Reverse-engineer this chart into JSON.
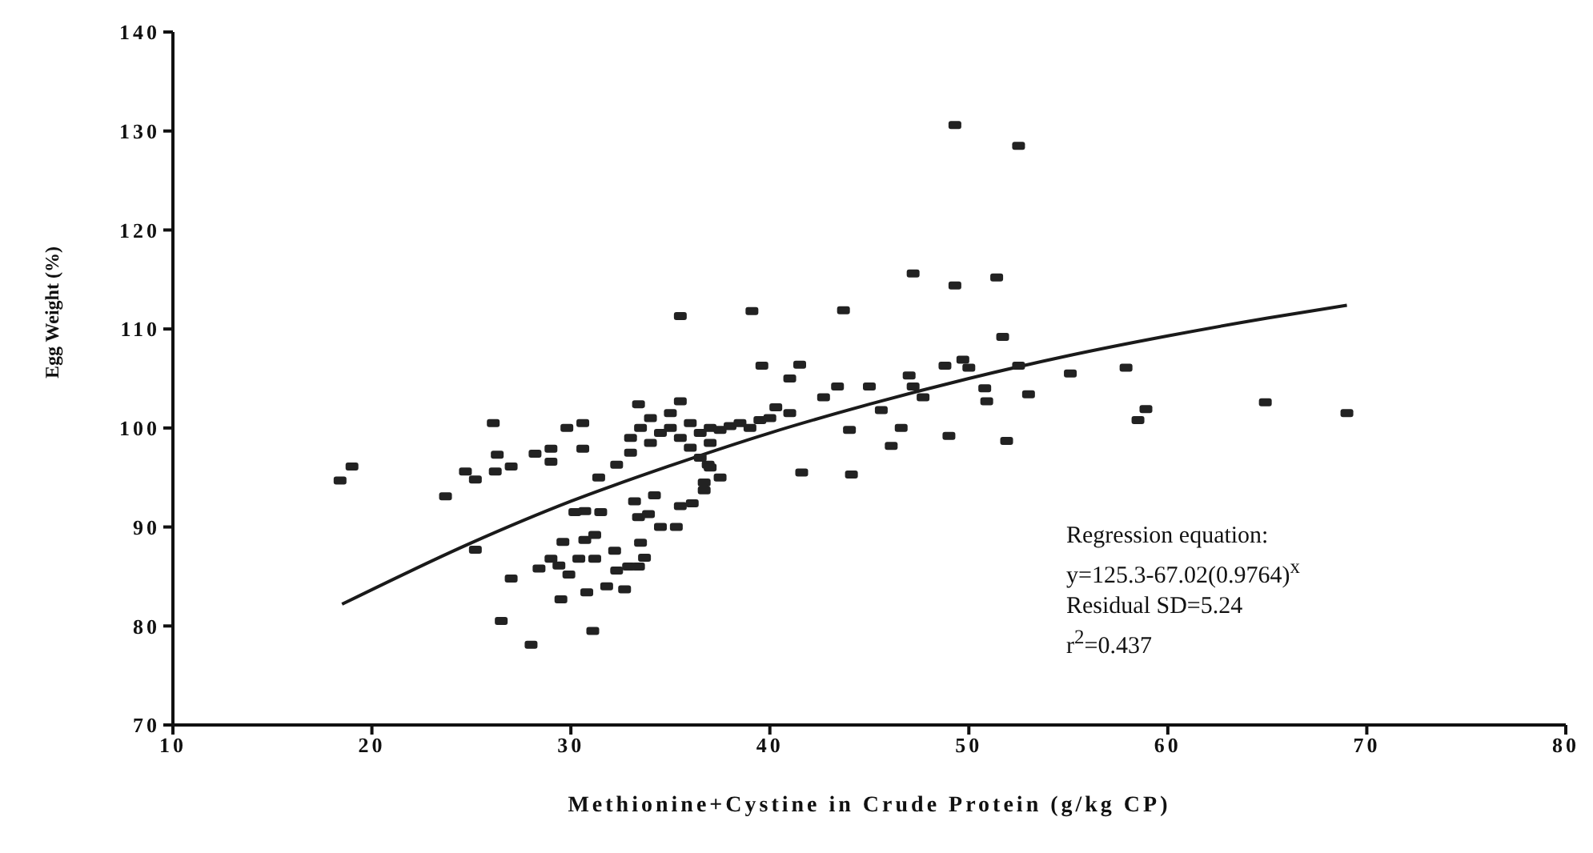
{
  "chart_data": {
    "type": "scatter",
    "xlabel": "Methionine+Cystine in Crude Protein (g/kg CP)",
    "ylabel": "Egg Weight (%)",
    "xlim": [
      10,
      80
    ],
    "xticks": [
      10,
      20,
      30,
      40,
      50,
      60,
      70,
      80
    ],
    "ylim": [
      70,
      140
    ],
    "yticks": [
      70,
      80,
      90,
      100,
      110,
      120,
      130,
      140
    ],
    "grid": false,
    "legend": false,
    "series": [
      {
        "marker": "square",
        "color": "#222222",
        "x": [
          19.0,
          18.4,
          23.7,
          26.1,
          24.7,
          25.2,
          26.3,
          26.2,
          27.0,
          28.2,
          29.0,
          29.0,
          29.8,
          30.6,
          30.6,
          32.3,
          31.4,
          25.2,
          33.4,
          35.5,
          34.2,
          33.2,
          33.4,
          33.9,
          34.5,
          35.3,
          35.5,
          36.1,
          36.7,
          36.7,
          36.9,
          30.7,
          31.5,
          29.6,
          30.7,
          31.2,
          33.5,
          33.7,
          32.2,
          30.4,
          31.2,
          29.0,
          28.4,
          29.4,
          29.9,
          27.0,
          32.3,
          32.9,
          33.4,
          31.8,
          32.7,
          30.8,
          29.5,
          26.5,
          31.1,
          28.0,
          30.2,
          33.0,
          33.5,
          34.0,
          34.5,
          35.0,
          35.5,
          36.0,
          36.5,
          37.0,
          37.5,
          38.0,
          38.5,
          39.0,
          39.5,
          40.0,
          33.0,
          34.0,
          35.0,
          36.0,
          37.0,
          37.0,
          37.5,
          36.5,
          49.3,
          52.5,
          47.2,
          49.3,
          51.4,
          35.5,
          39.1,
          43.7,
          51.7,
          39.6,
          41.5,
          48.8,
          49.7,
          50.0,
          52.5,
          55.1,
          57.9,
          58.9,
          58.5,
          64.9,
          50.8,
          50.9,
          53.0,
          49.0,
          51.9,
          41.0,
          47.0,
          41.6,
          44.1,
          46.1,
          46.6,
          44.0,
          45.0,
          43.4,
          42.7,
          41.0,
          40.3,
          45.6,
          47.7,
          47.2,
          69.0
        ],
        "values": [
          96.1,
          94.7,
          93.1,
          100.5,
          95.6,
          94.8,
          97.3,
          95.6,
          96.1,
          97.4,
          97.9,
          96.6,
          100.0,
          100.5,
          97.9,
          96.3,
          95.0,
          87.7,
          102.4,
          102.7,
          93.2,
          92.6,
          91.0,
          91.3,
          90.0,
          90.0,
          92.1,
          92.4,
          93.7,
          94.5,
          96.3,
          91.6,
          91.5,
          88.5,
          88.7,
          89.2,
          88.4,
          86.9,
          87.6,
          86.8,
          86.8,
          86.8,
          85.8,
          86.1,
          85.2,
          84.8,
          85.6,
          86.0,
          86.0,
          84.0,
          83.7,
          83.4,
          82.7,
          80.5,
          79.5,
          78.1,
          91.5,
          99.0,
          100.0,
          98.5,
          99.5,
          100.0,
          99.0,
          100.5,
          99.5,
          100.0,
          99.8,
          100.2,
          100.5,
          100.0,
          100.8,
          101.0,
          97.5,
          101.0,
          101.5,
          98.0,
          98.5,
          96.0,
          95.0,
          97.0,
          130.6,
          128.5,
          115.6,
          114.4,
          115.2,
          111.3,
          111.8,
          111.9,
          109.2,
          106.3,
          106.4,
          106.3,
          106.9,
          106.1,
          106.3,
          105.5,
          106.1,
          101.9,
          100.8,
          102.6,
          104.0,
          102.7,
          103.4,
          99.2,
          98.7,
          105.0,
          105.3,
          95.5,
          95.3,
          98.2,
          100.0,
          99.8,
          104.2,
          104.2,
          103.1,
          101.5,
          102.1,
          101.8,
          103.1,
          104.2,
          101.5
        ]
      },
      {
        "type": "line",
        "color": "#1a1a1a",
        "x": [
          18.5,
          25,
          30,
          35,
          40,
          45,
          50,
          55,
          60,
          65,
          69
        ],
        "values": [
          82.2,
          88.4,
          92.6,
          96.2,
          99.5,
          102.4,
          105.0,
          107.3,
          109.3,
          111.1,
          112.4
        ]
      }
    ],
    "annotations": [
      "Regression equation:",
      "y=125.3-67.02(0.9764)$^{x}$",
      "Residual SD=5.24",
      "r$^{2}$=0.437"
    ]
  }
}
